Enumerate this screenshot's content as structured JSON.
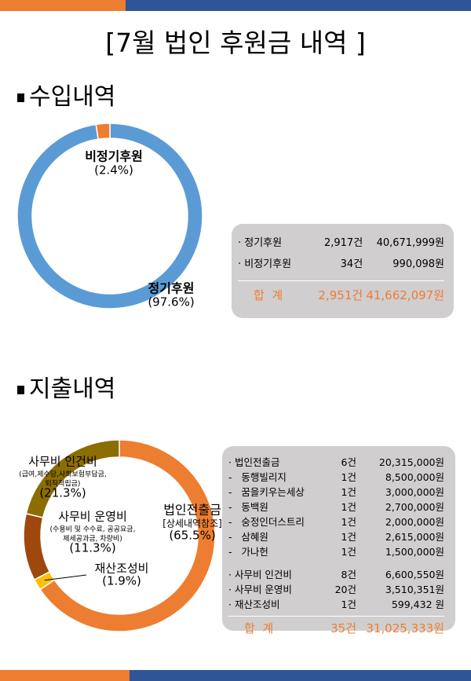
{
  "header": {
    "title": "[7월 법인 후원금 내역 ]"
  },
  "chart_data": [
    {
      "type": "donut",
      "title": "수입내역",
      "categories": [
        "정기후원",
        "비정기후원"
      ],
      "values": [
        97.6,
        2.4
      ],
      "value_labels": [
        "(97.6%)",
        "(2.4%)"
      ],
      "colors": [
        "#5b9bd5",
        "#ed7d31"
      ]
    },
    {
      "type": "donut",
      "title": "지출내역",
      "categories": [
        "법인전출금",
        "재산조성비",
        "사무비 운영비",
        "사무비 인건비"
      ],
      "values": [
        65.5,
        1.9,
        11.3,
        21.3
      ],
      "value_labels": [
        "(65.5%)",
        "(1.9%)",
        "(11.3%)",
        "(21.3%)"
      ],
      "annotations": [
        [
          "[상세내역참조]"
        ],
        [
          "(수용비 및 수수료, 공공요금,",
          "제세공과금, 차량비)"
        ],
        [
          "(급여,제수당,사회보험부담금,",
          "퇴직적립금)"
        ]
      ],
      "colors": [
        "#ed7d31",
        "#ffc000",
        "#9e480e",
        "#8c6d00"
      ]
    }
  ],
  "income_table": {
    "rows": [
      [
        "· 정기후원",
        "2,917건",
        "40,671,999원"
      ],
      [
        "· 비정기후원",
        "34건",
        "990,098원"
      ]
    ],
    "total": [
      "합  계",
      "2,951건",
      "41,662,097원"
    ]
  },
  "expense_table": {
    "groups": [
      [
        [
          "· 법인전출금",
          "6건",
          "20,315,000원"
        ],
        [
          "-   동행빌리지",
          "1건",
          "8,500,000원"
        ],
        [
          "-   꿈을키우는세상",
          "1건",
          "3,000,000원"
        ],
        [
          "-   동백원",
          "1건",
          "2,700,000원"
        ],
        [
          "-   숭정인더스트리",
          "1건",
          "2,000,000원"
        ],
        [
          "-   삼혜원",
          "1건",
          "2,615,000원"
        ],
        [
          "-   가나헌",
          "1건",
          "1,500,000원"
        ]
      ],
      [
        [
          "· 사무비 인건비",
          "8건",
          "6,600,550원"
        ],
        [
          "· 사무비 운영비",
          "20건",
          "3,510,351원"
        ],
        [
          "· 재산조성비",
          "1건",
          "599,432 원"
        ]
      ]
    ],
    "total": [
      "합  계",
      "35건",
      "31,025,333원"
    ]
  }
}
